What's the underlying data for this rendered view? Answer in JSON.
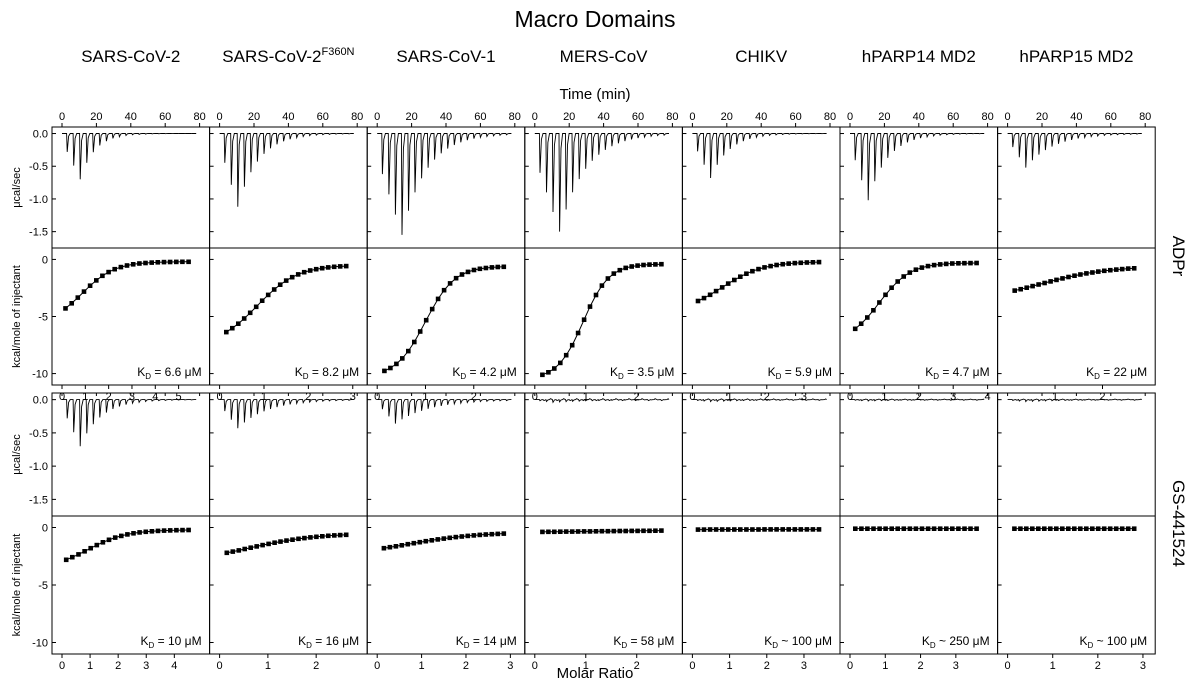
{
  "chart_data": {
    "type": "line",
    "title": "Macro Domains",
    "top_axis_label": "Time (min)",
    "bottom_axis_label": "Molar Ratio",
    "raw_panel_ylabel": "μcal/sec",
    "fit_panel_ylabel": "kcal/mole of injectant",
    "columns": [
      "SARS-CoV-2",
      "SARS-CoV-2",
      "SARS-CoV-1",
      "MERS-CoV",
      "CHIKV",
      "hPARP14 MD2",
      "hPARP15 MD2"
    ],
    "column_superscripts": [
      "",
      "F360N",
      "",
      "",
      "",
      "",
      ""
    ],
    "rows": [
      "ADPr",
      "GS-441524"
    ],
    "time_axis": {
      "range": [
        0,
        80
      ],
      "ticks": [
        "0",
        "20",
        "40",
        "60",
        "80"
      ]
    },
    "raw_axis": {
      "range": [
        -1.75,
        0.1
      ],
      "ticks": [
        "0.0",
        "-0.5",
        "-1.0",
        "-1.5"
      ]
    },
    "fit_axis": {
      "range": [
        -11,
        1
      ],
      "ticks": [
        "0",
        "-5",
        "-10"
      ]
    },
    "injections": 20,
    "panels": [
      {
        "row": "ADPr",
        "column": "SARS-CoV-2",
        "first_peak": -0.7,
        "peak_min": -0.7,
        "peak_index": 2,
        "decay": 0.28,
        "baseline_noise": 0,
        "fit_start": -5.8,
        "fit_end": -0.2,
        "fit_mid": 0.85,
        "fit_width": 0.7,
        "molar_max": 5.9,
        "molar_ticks": [
          "0",
          "1",
          "2",
          "3",
          "4",
          "5"
        ],
        "kd_label": "K",
        "kd_subscript": "D",
        "kd_text": " = 6.6 μM"
      },
      {
        "row": "ADPr",
        "column": "SARS-CoV-2F360N",
        "first_peak": -1.12,
        "peak_min": -1.12,
        "peak_index": 2,
        "decay": 0.2,
        "baseline_noise": 0,
        "fit_start": -7.6,
        "fit_end": -0.5,
        "fit_mid": 0.85,
        "fit_width": 0.45,
        "molar_max": 3.1,
        "molar_ticks": [
          "0",
          "1",
          "2",
          "3"
        ],
        "kd_label": "K",
        "kd_subscript": "D",
        "kd_text": " = 8.2 μM"
      },
      {
        "row": "ADPr",
        "column": "SARS-CoV-1",
        "first_peak": -1.55,
        "peak_min": -1.55,
        "peak_index": 3,
        "decay": 0.17,
        "baseline_noise": 0,
        "fit_start": -10.3,
        "fit_end": -0.6,
        "fit_mid": 1.0,
        "fit_width": 0.3,
        "molar_max": 2.85,
        "molar_ticks": [
          "0",
          "1",
          "2"
        ],
        "kd_label": "K",
        "kd_subscript": "D",
        "kd_text": " = 4.2 μM"
      },
      {
        "row": "ADPr",
        "column": "MERS-CoV",
        "first_peak": -1.5,
        "peak_min": -1.5,
        "peak_index": 3,
        "decay": 0.16,
        "baseline_noise": 0,
        "fit_start": -10.5,
        "fit_end": -0.4,
        "fit_mid": 0.95,
        "fit_width": 0.25,
        "molar_max": 2.7,
        "molar_ticks": [
          "0",
          "1",
          "2"
        ],
        "kd_label": "K",
        "kd_subscript": "D",
        "kd_text": " = 3.5 μM"
      },
      {
        "row": "ADPr",
        "column": "CHIKV",
        "first_peak": -0.68,
        "peak_min": -0.68,
        "peak_index": 2,
        "decay": 0.22,
        "baseline_noise": 0,
        "fit_start": -4.7,
        "fit_end": -0.2,
        "fit_mid": 0.8,
        "fit_width": 0.55,
        "molar_max": 3.7,
        "molar_ticks": [
          "0",
          "1",
          "2",
          "3"
        ],
        "kd_label": "K",
        "kd_subscript": "D",
        "kd_text": " = 5.9 μM"
      },
      {
        "row": "ADPr",
        "column": "hPARP14 MD2",
        "first_peak": -1.02,
        "peak_min": -1.02,
        "peak_index": 2,
        "decay": 0.21,
        "baseline_noise": 0,
        "fit_start": -7.3,
        "fit_end": -0.3,
        "fit_mid": 0.85,
        "fit_width": 0.45,
        "molar_max": 4.0,
        "molar_ticks": [
          "0",
          "1",
          "2",
          "3",
          "4"
        ],
        "kd_label": "K",
        "kd_subscript": "D",
        "kd_text": " = 4.7 μM"
      },
      {
        "row": "ADPr",
        "column": "hPARP15 MD2",
        "first_peak": -0.52,
        "peak_min": -0.52,
        "peak_index": 2,
        "decay": 0.15,
        "baseline_noise": 0,
        "fit_start": -3.7,
        "fit_end": -0.6,
        "fit_mid": 0.7,
        "fit_width": 0.7,
        "molar_max": 2.9,
        "molar_ticks": [
          "1",
          "2"
        ],
        "kd_label": "K",
        "kd_subscript": "D",
        "kd_text": " = 22 μM"
      },
      {
        "row": "GS-441524",
        "column": "SARS-CoV-2",
        "first_peak": -0.7,
        "peak_min": -0.7,
        "peak_index": 2,
        "decay": 0.2,
        "baseline_noise": 0,
        "fit_start": -3.7,
        "fit_end": -0.2,
        "fit_mid": 0.9,
        "fit_width": 0.7,
        "molar_max": 4.9,
        "molar_ticks": [
          "0",
          "1",
          "2",
          "3",
          "4"
        ],
        "kd_label": "K",
        "kd_subscript": "D",
        "kd_text": " = 10 μM"
      },
      {
        "row": "GS-441524",
        "column": "SARS-CoV-2F360N",
        "first_peak": -0.43,
        "peak_min": -0.43,
        "peak_index": 2,
        "decay": 0.14,
        "baseline_noise": 0,
        "fit_start": -3.1,
        "fit_end": -0.5,
        "fit_mid": 0.6,
        "fit_width": 0.7,
        "molar_max": 2.85,
        "molar_ticks": [
          "0",
          "1",
          "2"
        ],
        "kd_label": "K",
        "kd_subscript": "D",
        "kd_text": " = 16 μM"
      },
      {
        "row": "GS-441524",
        "column": "SARS-CoV-1",
        "first_peak": -0.36,
        "peak_min": -0.36,
        "peak_index": 2,
        "decay": 0.12,
        "baseline_noise": 0,
        "fit_start": -2.5,
        "fit_end": -0.4,
        "fit_mid": 0.7,
        "fit_width": 0.8,
        "molar_max": 3.1,
        "molar_ticks": [
          "0",
          "1",
          "2",
          "3"
        ],
        "kd_label": "K",
        "kd_subscript": "D",
        "kd_text": " = 14 μM"
      },
      {
        "row": "GS-441524",
        "column": "MERS-CoV",
        "first_peak": -0.04,
        "peak_min": -0.04,
        "peak_index": 2,
        "decay": 0.1,
        "baseline_noise": 0.015,
        "fit_start": -0.5,
        "fit_end": -0.2,
        "fit_mid": 0.8,
        "fit_width": 1.5,
        "molar_max": 2.7,
        "molar_ticks": [
          "0",
          "1",
          "2"
        ],
        "kd_label": "K",
        "kd_subscript": "D",
        "kd_text": " = 58 μM"
      },
      {
        "row": "GS-441524",
        "column": "CHIKV",
        "first_peak": -0.03,
        "peak_min": -0.03,
        "peak_index": 2,
        "decay": 0.1,
        "baseline_noise": 0.012,
        "fit_start": -0.2,
        "fit_end": -0.15,
        "fit_mid": 1.0,
        "fit_width": 2.0,
        "molar_max": 3.7,
        "molar_ticks": [
          "0",
          "1",
          "2",
          "3"
        ],
        "kd_label": "K",
        "kd_subscript": "D",
        "kd_text": " ~ 100 μM"
      },
      {
        "row": "GS-441524",
        "column": "hPARP14 MD2",
        "first_peak": -0.02,
        "peak_min": -0.02,
        "peak_index": 2,
        "decay": 0.1,
        "baseline_noise": 0.008,
        "fit_start": -0.1,
        "fit_end": -0.1,
        "fit_mid": 1.0,
        "fit_width": 2.0,
        "molar_max": 3.9,
        "molar_ticks": [
          "0",
          "1",
          "2",
          "3"
        ],
        "kd_label": "K",
        "kd_subscript": "D",
        "kd_text": " ~ 250 μM"
      },
      {
        "row": "GS-441524",
        "column": "hPARP15 MD2",
        "first_peak": -0.03,
        "peak_min": -0.03,
        "peak_index": 2,
        "decay": 0.1,
        "baseline_noise": 0.008,
        "fit_start": -0.1,
        "fit_end": -0.1,
        "fit_mid": 1.0,
        "fit_width": 2.0,
        "molar_max": 3.05,
        "molar_ticks": [
          "0",
          "1",
          "2",
          "3"
        ],
        "kd_label": "K",
        "kd_subscript": "D",
        "kd_text": " ~ 100 μM"
      }
    ]
  }
}
